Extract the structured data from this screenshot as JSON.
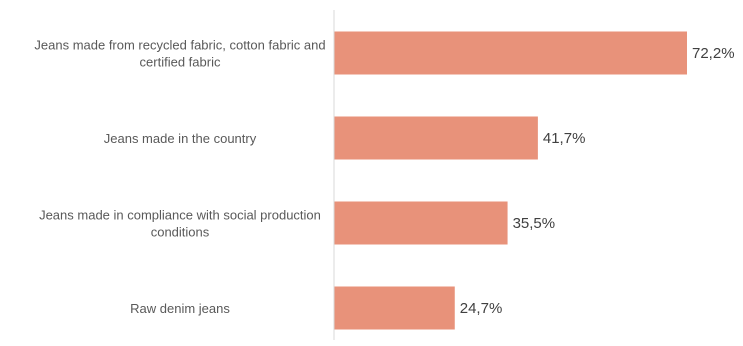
{
  "chart_data": {
    "type": "bar",
    "orientation": "horizontal",
    "categories": [
      [
        "Jeans made from recycled fabric, cotton fabric and",
        "certified fabric"
      ],
      [
        "Jeans made in the country"
      ],
      [
        "Jeans made in compliance with social production",
        "conditions"
      ],
      [
        "Raw denim jeans"
      ]
    ],
    "values": [
      72.2,
      41.7,
      35.5,
      24.7
    ],
    "value_labels": [
      "72,2%",
      "41,7%",
      "35,5%",
      "24,7%"
    ],
    "xlim": [
      0,
      75
    ],
    "grid": false,
    "legend": "none",
    "title": "",
    "xlabel": "",
    "ylabel": "",
    "colors": {
      "bar": "#E8927A",
      "axis": "#d9d9d9"
    }
  }
}
